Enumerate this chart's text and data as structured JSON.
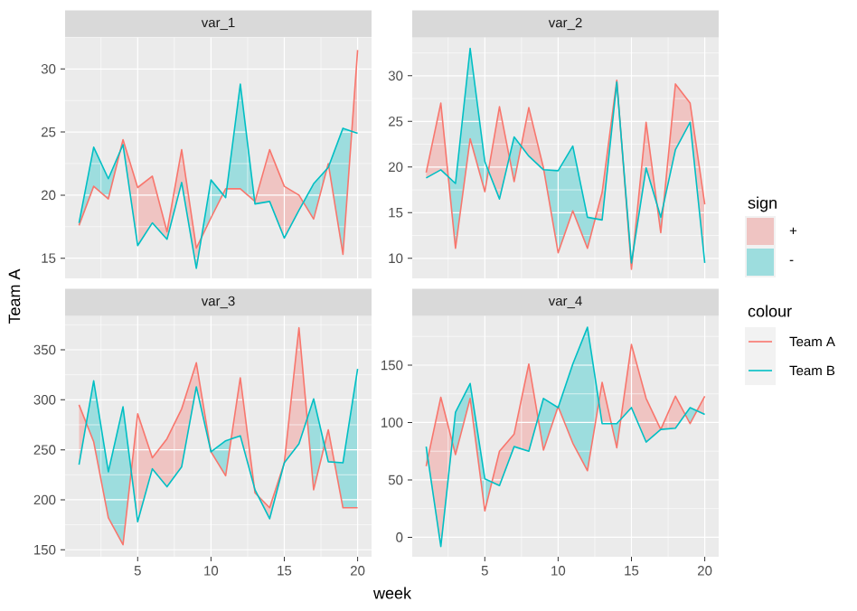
{
  "chart_data": [
    {
      "type": "line",
      "title": "var_1",
      "ylabel": "Team A",
      "x": [
        1,
        2,
        3,
        4,
        5,
        6,
        7,
        8,
        9,
        10,
        11,
        12,
        13,
        14,
        15,
        16,
        17,
        18,
        19,
        20
      ],
      "xlim": [
        0.05,
        20.95
      ],
      "xticks": [
        5,
        10,
        15,
        20
      ],
      "ylim": [
        13.4,
        32.5
      ],
      "yticks": [
        15,
        20,
        25,
        30
      ],
      "grid": true,
      "tick_labels": "y",
      "series": [
        {
          "color": "#f8766d",
          "values": [
            17.6,
            20.7,
            19.7,
            24.4,
            20.6,
            21.5,
            17.1,
            23.6,
            15.8,
            18.2,
            20.5,
            20.5,
            19.5,
            23.6,
            20.7,
            20.0,
            18.1,
            22.5,
            15.3,
            31.5
          ]
        },
        {
          "color": "#00bfc4",
          "values": [
            17.8,
            23.8,
            21.3,
            24.0,
            16.0,
            17.8,
            16.5,
            21.0,
            14.2,
            21.2,
            19.8,
            28.8,
            19.3,
            19.5,
            16.6,
            18.8,
            20.9,
            22.2,
            25.3,
            24.9
          ]
        }
      ]
    },
    {
      "type": "line",
      "title": "var_2",
      "x": [
        1,
        2,
        3,
        4,
        5,
        6,
        7,
        8,
        9,
        10,
        11,
        12,
        13,
        14,
        15,
        16,
        17,
        18,
        19,
        20
      ],
      "xlim": [
        0.05,
        20.95
      ],
      "xticks": [
        5,
        10,
        15,
        20
      ],
      "ylim": [
        7.8,
        34.2
      ],
      "yticks": [
        10,
        15,
        20,
        25,
        30
      ],
      "grid": true,
      "tick_labels": "y",
      "legend": "right",
      "legend_title": "colour",
      "annotations": [
        "sign",
        "+",
        "-"
      ],
      "series": [
        {
          "name": "Team A",
          "color": "#f8766d",
          "values": [
            19.4,
            27.0,
            11.1,
            23.1,
            17.3,
            26.6,
            18.4,
            26.5,
            19.9,
            10.6,
            15.2,
            11.1,
            17.2,
            29.5,
            8.8,
            24.9,
            12.8,
            29.1,
            27.0,
            15.9
          ]
        },
        {
          "name": "Team B",
          "color": "#00bfc4",
          "values": [
            18.8,
            19.7,
            18.2,
            33.0,
            20.6,
            16.5,
            23.3,
            21.2,
            19.7,
            19.6,
            22.3,
            14.5,
            14.2,
            29.3,
            9.5,
            19.9,
            14.5,
            21.9,
            24.9,
            9.5
          ]
        }
      ]
    },
    {
      "type": "line",
      "title": "var_3",
      "xlabel": "week",
      "x": [
        1,
        2,
        3,
        4,
        5,
        6,
        7,
        8,
        9,
        10,
        11,
        12,
        13,
        14,
        15,
        16,
        17,
        18,
        19,
        20
      ],
      "xlim": [
        0.05,
        20.95
      ],
      "xticks": [
        5,
        10,
        15,
        20
      ],
      "ylim": [
        143,
        384
      ],
      "yticks": [
        150,
        200,
        250,
        300,
        350
      ],
      "grid": true,
      "series": [
        {
          "color": "#f8766d",
          "values": [
            295,
            258,
            182,
            155,
            286,
            242,
            261,
            291,
            337,
            248,
            224,
            322,
            207,
            192,
            237,
            372,
            210,
            270,
            192,
            192
          ]
        },
        {
          "color": "#00bfc4",
          "values": [
            235,
            319,
            228,
            293,
            178,
            231,
            213,
            233,
            313,
            248,
            259,
            264,
            210,
            181,
            237,
            256,
            301,
            238,
            237,
            331
          ]
        }
      ]
    },
    {
      "type": "line",
      "title": "var_4",
      "x": [
        1,
        2,
        3,
        4,
        5,
        6,
        7,
        8,
        9,
        10,
        11,
        12,
        13,
        14,
        15,
        16,
        17,
        18,
        19,
        20
      ],
      "xlim": [
        0.05,
        20.95
      ],
      "xticks": [
        5,
        10,
        15,
        20
      ],
      "ylim": [
        -17,
        193
      ],
      "yticks": [
        0,
        50,
        100,
        150
      ],
      "grid": true,
      "series": [
        {
          "color": "#f8766d",
          "values": [
            62,
            122,
            72,
            121,
            23,
            75,
            90,
            151,
            76,
            114,
            82,
            58,
            135,
            78,
            168,
            121,
            94,
            123,
            99,
            123
          ]
        },
        {
          "color": "#00bfc4",
          "values": [
            79,
            -8,
            109,
            134,
            51,
            45,
            79,
            75,
            121,
            113,
            151,
            183,
            99,
            99,
            113,
            83,
            94,
            95,
            113,
            107
          ]
        }
      ]
    }
  ]
}
